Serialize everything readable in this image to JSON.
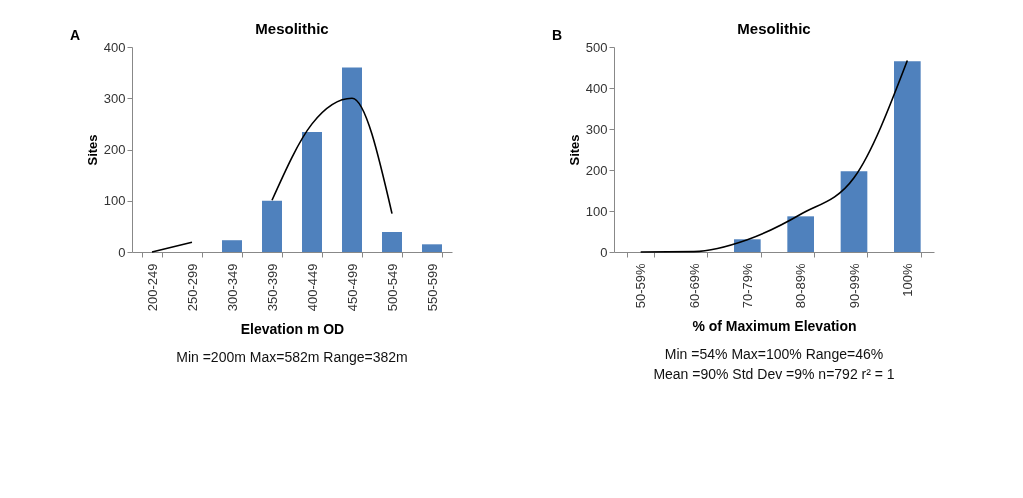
{
  "chart_data": [
    {
      "type": "bar",
      "title": "Mesolithic",
      "xlabel": "Elevation m OD",
      "ylabel": "Sites",
      "categories": [
        "200-249",
        "250-299",
        "300-349",
        "350-399",
        "400-449",
        "450-499",
        "500-549",
        "550-599"
      ],
      "ylim": [
        0,
        400
      ],
      "yticks": [
        0,
        100,
        200,
        300,
        400
      ],
      "grid": false,
      "series": [
        {
          "color": "#4f81bd",
          "values": [
            0,
            0,
            23,
            100,
            234,
            360,
            39,
            15
          ]
        },
        {
          "type": "line",
          "color": "#000000",
          "values": [
            0,
            19,
            null,
            101,
            250,
            300,
            75,
            null
          ]
        }
      ],
      "annotations": [
        "A",
        "Min =200m  Max=582m   Range=382m"
      ]
    },
    {
      "type": "bar",
      "title": "Mesolithic",
      "xlabel": "% of Maximum Elevation",
      "ylabel": "Sites",
      "categories": [
        "50-59%",
        "60-69%",
        "70-79%",
        "80-89%",
        "90-99%",
        "100%"
      ],
      "ylim": [
        0,
        500
      ],
      "yticks": [
        0,
        100,
        200,
        300,
        400,
        500
      ],
      "grid": false,
      "series": [
        {
          "color": "#4f81bd",
          "values": [
            0,
            0,
            31,
            87,
            197,
            465
          ]
        },
        {
          "type": "line",
          "color": "#000000",
          "values": [
            0,
            1,
            30,
            92,
            181,
            467
          ]
        }
      ],
      "annotations": [
        "B",
        "Min =54%   Max=100%  Range=46%",
        "Mean =90%  Std Dev =9%   n=792   r² = 1"
      ]
    }
  ]
}
